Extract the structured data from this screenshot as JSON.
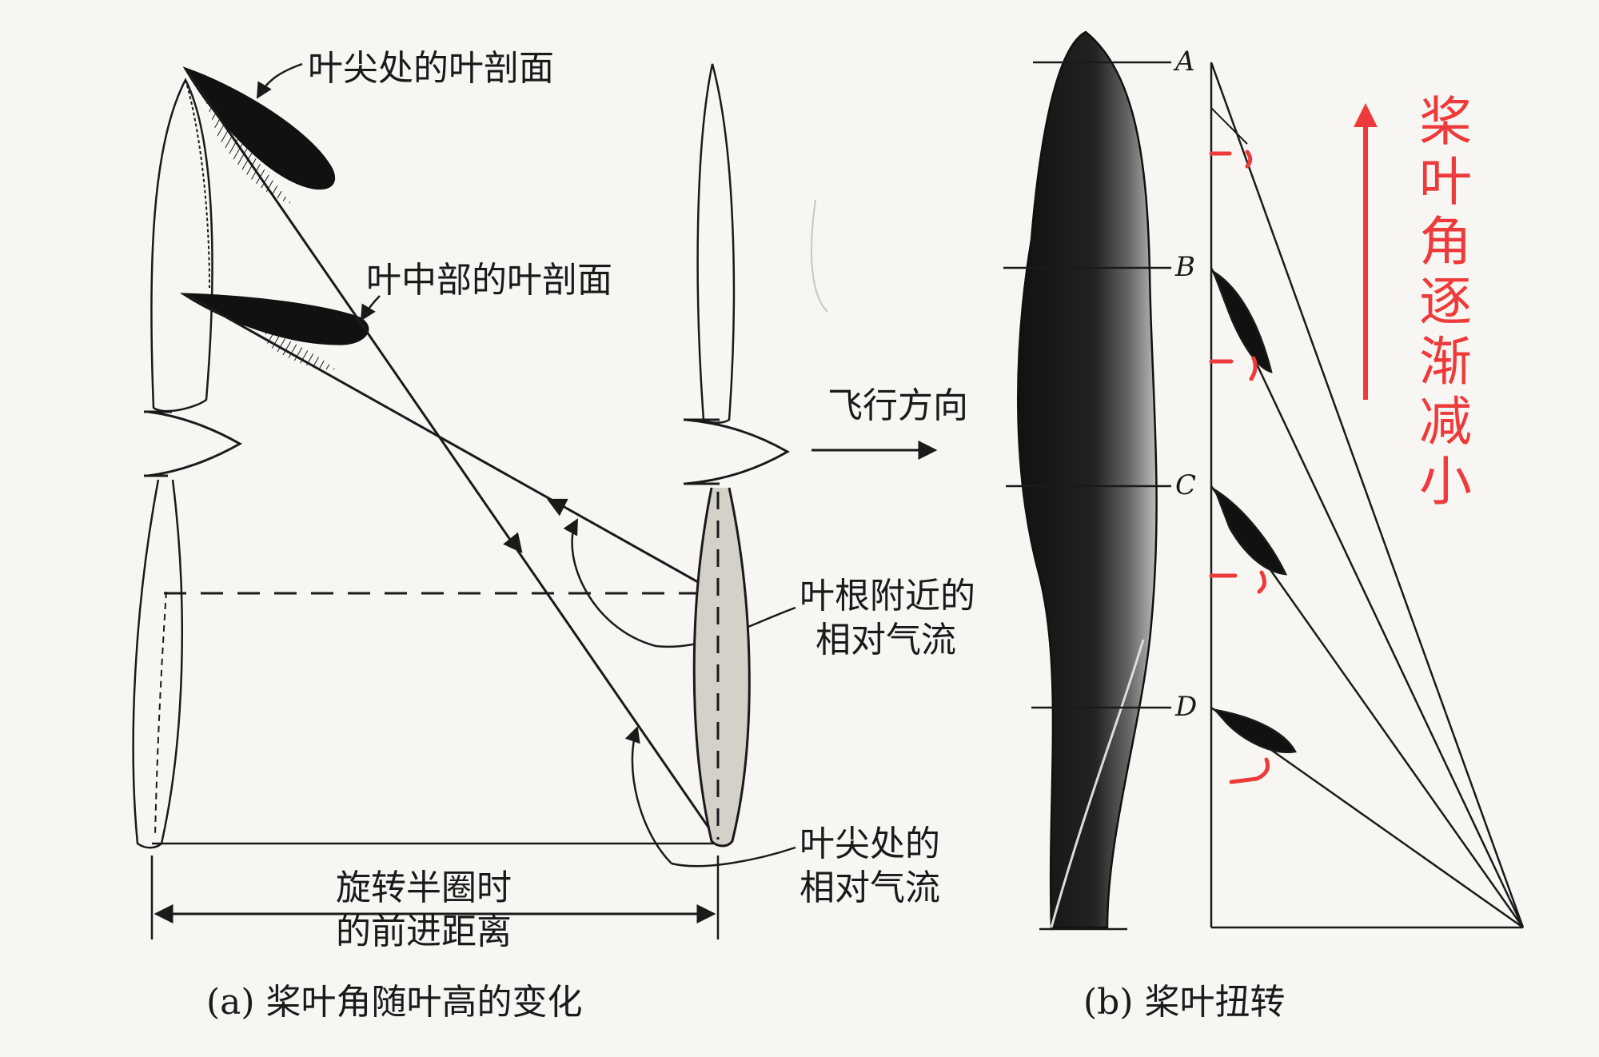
{
  "panel_a": {
    "label_tip_section": "叶尖处的叶剖面",
    "label_mid_section": "叶中部的叶剖面",
    "label_flight_direction": "飞行方向",
    "label_root_airflow_line1": "叶根附近的",
    "label_root_airflow_line2": "相对气流",
    "label_tip_airflow_line1": "叶尖处的",
    "label_tip_airflow_line2": "相对气流",
    "label_advance_line1": "旋转半圈时",
    "label_advance_line2": "的前进距离",
    "caption": "(a) 桨叶角随叶高的变化"
  },
  "panel_b": {
    "station_labels": [
      "A",
      "B",
      "C",
      "D"
    ],
    "annotation": [
      "桨",
      "叶",
      "角",
      "逐",
      "渐",
      "减",
      "小"
    ],
    "caption": "(b) 桨叶扭转"
  },
  "colors": {
    "ink": "#1a1a1a",
    "annotation_red": "#ee3a3a",
    "paper": "#f7f6f2"
  }
}
